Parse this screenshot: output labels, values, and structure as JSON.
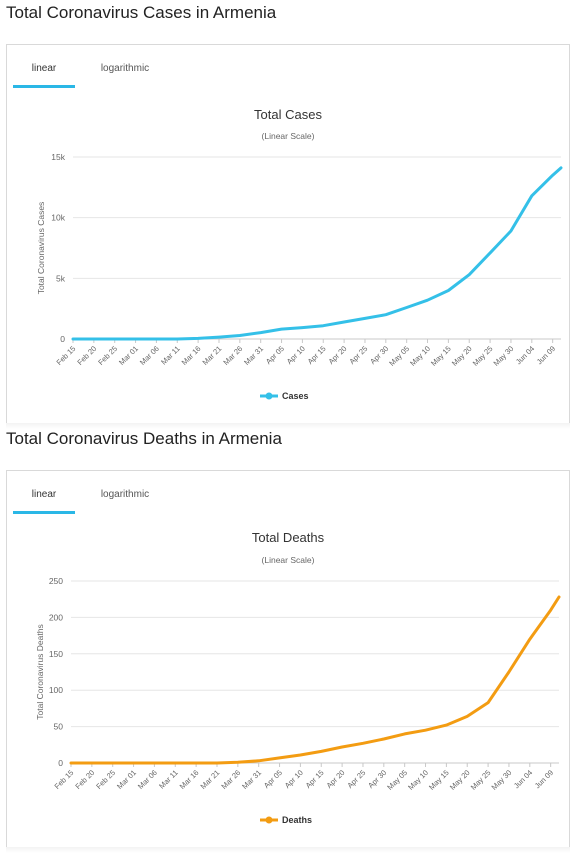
{
  "sections": [
    {
      "heading": "Total Coronavirus Cases in Armenia",
      "tabs": [
        {
          "label": "linear",
          "active": true
        },
        {
          "label": "logarithmic",
          "active": false
        }
      ],
      "color": "#34c0e8",
      "chart_data": {
        "type": "line",
        "title": "Total Cases",
        "subtitle": "(Linear Scale)",
        "ylabel": "Total Coronavirus Cases",
        "xlabel": "",
        "ylim": [
          0,
          15000
        ],
        "yticks": [
          0,
          5000,
          10000,
          15000
        ],
        "ytick_labels": [
          "0",
          "5k",
          "10k",
          "15k"
        ],
        "x_tick_labels": [
          "Feb 15",
          "Feb 20",
          "Feb 25",
          "Mar 01",
          "Mar 06",
          "Mar 11",
          "Mar 16",
          "Mar 21",
          "Mar 26",
          "Mar 31",
          "Apr 05",
          "Apr 10",
          "Apr 15",
          "Apr 20",
          "Apr 25",
          "Apr 30",
          "May 05",
          "May 10",
          "May 15",
          "May 20",
          "May 25",
          "May 30",
          "Jun 04",
          "Jun 09"
        ],
        "legend": "bottom-center",
        "series": [
          {
            "name": "Cases",
            "x": [
              "Feb 15",
              "Feb 20",
              "Feb 25",
              "Mar 01",
              "Mar 06",
              "Mar 11",
              "Mar 16",
              "Mar 21",
              "Mar 26",
              "Mar 31",
              "Apr 05",
              "Apr 10",
              "Apr 15",
              "Apr 20",
              "Apr 25",
              "Apr 30",
              "May 05",
              "May 10",
              "May 15",
              "May 20",
              "May 25",
              "May 30",
              "Jun 04",
              "Jun 09",
              "Jun 11"
            ],
            "values": [
              0,
              0,
              0,
              1,
              1,
              1,
              50,
              160,
              290,
              530,
              820,
              940,
              1100,
              1400,
              1700,
              2000,
              2600,
              3200,
              4000,
              5300,
              7100,
              8900,
              11800,
              13500,
              14100
            ]
          }
        ]
      }
    },
    {
      "heading": "Total Coronavirus Deaths in Armenia",
      "tabs": [
        {
          "label": "linear",
          "active": true
        },
        {
          "label": "logarithmic",
          "active": false
        }
      ],
      "color": "#f39c12",
      "chart_data": {
        "type": "line",
        "title": "Total Deaths",
        "subtitle": "(Linear Scale)",
        "ylabel": "Total Coronavirus Deaths",
        "xlabel": "",
        "ylim": [
          0,
          250
        ],
        "yticks": [
          0,
          50,
          100,
          150,
          200,
          250
        ],
        "ytick_labels": [
          "0",
          "50",
          "100",
          "150",
          "200",
          "250"
        ],
        "x_tick_labels": [
          "Feb 15",
          "Feb 20",
          "Feb 25",
          "Mar 01",
          "Mar 06",
          "Mar 11",
          "Mar 16",
          "Mar 21",
          "Mar 26",
          "Mar 31",
          "Apr 05",
          "Apr 10",
          "Apr 15",
          "Apr 20",
          "Apr 25",
          "Apr 30",
          "May 05",
          "May 10",
          "May 15",
          "May 20",
          "May 25",
          "May 30",
          "Jun 04",
          "Jun 09"
        ],
        "legend": "bottom-center",
        "series": [
          {
            "name": "Deaths",
            "x": [
              "Feb 15",
              "Feb 20",
              "Feb 25",
              "Mar 01",
              "Mar 06",
              "Mar 11",
              "Mar 16",
              "Mar 21",
              "Mar 26",
              "Mar 31",
              "Apr 05",
              "Apr 10",
              "Apr 15",
              "Apr 20",
              "Apr 25",
              "Apr 30",
              "May 05",
              "May 10",
              "May 15",
              "May 20",
              "May 25",
              "May 30",
              "Jun 04",
              "Jun 09",
              "Jun 11"
            ],
            "values": [
              0,
              0,
              0,
              0,
              0,
              0,
              0,
              0,
              1,
              3,
              7,
              11,
              16,
              22,
              27,
              33,
              40,
              45,
              52,
              64,
              83,
              125,
              170,
              210,
              228
            ]
          }
        ]
      }
    }
  ]
}
